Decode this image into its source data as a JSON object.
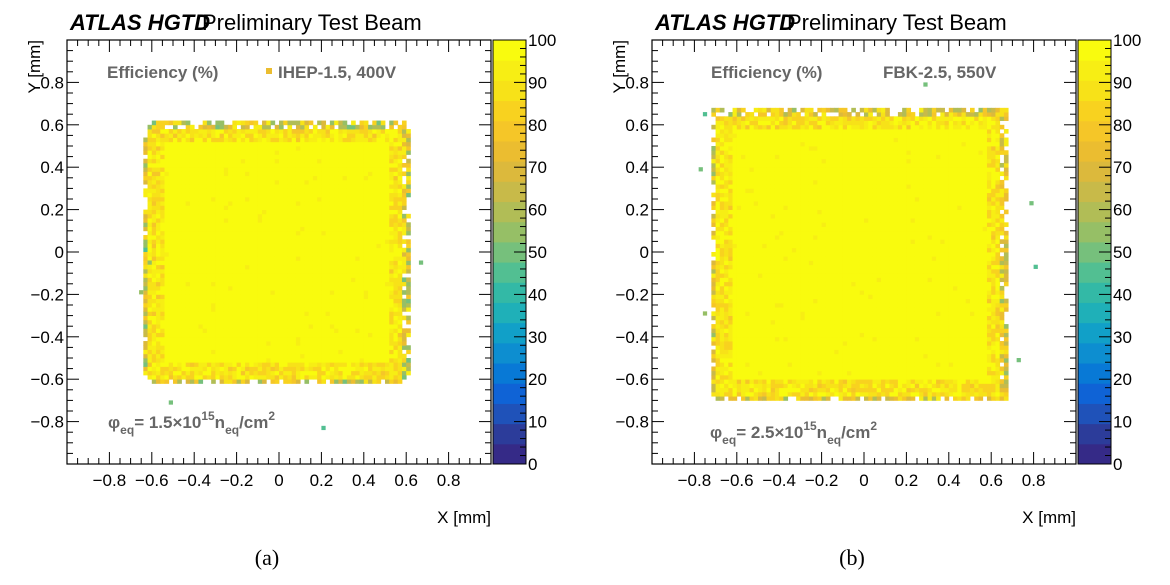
{
  "panels": [
    {
      "id": "a",
      "header_bold": "ATLAS HGTD",
      "header_rest": "Preliminary Test Beam",
      "z_title": "Efficiency (%)",
      "sensor_label": "IHEP-1.5, 400V",
      "fluence": {
        "phi": "φ",
        "phi_sub": "eq",
        "value": "= 1.5×10",
        "exp": "15",
        "n": "n",
        "n_sub": "eq",
        "unit": "/cm",
        "unit_sup": "2"
      },
      "caption": "(a)"
    },
    {
      "id": "b",
      "header_bold": "ATLAS HGTD",
      "header_rest": "Preliminary Test Beam",
      "z_title": "Efficiency (%)",
      "sensor_label": "FBK-2.5, 550V",
      "fluence": {
        "phi": "φ",
        "phi_sub": "eq",
        "value": "= 2.5×10",
        "exp": "15",
        "n": "n",
        "n_sub": "eq",
        "unit": "/cm",
        "unit_sup": "2"
      },
      "caption": "(b)"
    }
  ],
  "chart_data": [
    {
      "type": "heatmap",
      "title": "ATLAS HGTD Preliminary Test Beam",
      "xlabel": "X [mm]",
      "ylabel": "Y [mm]",
      "zlabel": "Efficiency (%)",
      "xlim": [
        -1.0,
        1.0
      ],
      "ylim": [
        -1.0,
        1.0
      ],
      "zlim": [
        0,
        100
      ],
      "x_ticks": [
        -0.8,
        -0.6,
        -0.4,
        -0.2,
        0,
        0.2,
        0.4,
        0.6,
        0.8
      ],
      "x_tick_labels": [
        "−0.8",
        "−0.6",
        "−0.4",
        "−0.2",
        "0",
        "0.2",
        "0.4",
        "0.6",
        "0.8"
      ],
      "y_ticks": [
        -0.8,
        -0.6,
        -0.4,
        -0.2,
        0,
        0.2,
        0.4,
        0.6,
        0.8
      ],
      "y_tick_labels": [
        "−0.8",
        "−0.6",
        "−0.4",
        "−0.2",
        "0",
        "0.2",
        "0.4",
        "0.6",
        "0.8"
      ],
      "z_ticks": [
        0,
        10,
        20,
        30,
        40,
        50,
        60,
        70,
        80,
        90,
        100
      ],
      "z_tick_labels": [
        "0",
        "10",
        "20",
        "30",
        "40",
        "50",
        "60",
        "70",
        "80",
        "90",
        "100"
      ],
      "bin_size": 0.02,
      "region": {
        "xmin": -0.64,
        "xmax": 0.62,
        "ymin": -0.62,
        "ymax": 0.62,
        "corner_radius": 0.1
      },
      "core_efficiency": 99,
      "edge_efficiency": [
        50,
        95
      ],
      "outliers": [
        [
          -0.64,
          0.0
        ],
        [
          -0.66,
          -0.2
        ],
        [
          -0.52,
          -0.72
        ],
        [
          0.2,
          -0.84
        ],
        [
          -0.62,
          -0.06
        ],
        [
          0.66,
          -0.06
        ]
      ],
      "palette": [
        "#352a87",
        "#2c3c9a",
        "#1f52b9",
        "#0f63d6",
        "#0879d6",
        "#0d8ed0",
        "#11a0c8",
        "#1fb0b8",
        "#33b9a6",
        "#52bf92",
        "#76c07c",
        "#96bf66",
        "#b1bd56",
        "#c8ba49",
        "#dcb93c",
        "#ebbd30",
        "#f5c628",
        "#f8d21f",
        "#f7e218",
        "#f7ee14",
        "#f9fb0e"
      ]
    },
    {
      "type": "heatmap",
      "title": "ATLAS HGTD Preliminary Test Beam",
      "xlabel": "X [mm]",
      "ylabel": "Y [mm]",
      "zlabel": "Efficiency (%)",
      "xlim": [
        -1.0,
        1.0
      ],
      "ylim": [
        -1.0,
        1.0
      ],
      "zlim": [
        0,
        100
      ],
      "x_ticks": [
        -0.8,
        -0.6,
        -0.4,
        -0.2,
        0,
        0.2,
        0.4,
        0.6,
        0.8
      ],
      "x_tick_labels": [
        "−0.8",
        "−0.6",
        "−0.4",
        "−0.2",
        "0",
        "0.2",
        "0.4",
        "0.6",
        "0.8"
      ],
      "y_ticks": [
        -0.8,
        -0.6,
        -0.4,
        -0.2,
        0,
        0.2,
        0.4,
        0.6,
        0.8
      ],
      "y_tick_labels": [
        "−0.8",
        "−0.6",
        "−0.4",
        "−0.2",
        "0",
        "0.2",
        "0.4",
        "0.6",
        "0.8"
      ],
      "z_ticks": [
        0,
        10,
        20,
        30,
        40,
        50,
        60,
        70,
        80,
        90,
        100
      ],
      "z_tick_labels": [
        "0",
        "10",
        "20",
        "30",
        "40",
        "50",
        "60",
        "70",
        "80",
        "90",
        "100"
      ],
      "bin_size": 0.02,
      "region": {
        "xmin": -0.72,
        "xmax": 0.68,
        "ymin": -0.7,
        "ymax": 0.68,
        "corner_radius": 0.03
      },
      "core_efficiency": 99,
      "edge_efficiency": [
        55,
        95
      ],
      "outliers": [
        [
          -0.76,
          0.64
        ],
        [
          0.28,
          0.78
        ],
        [
          -0.78,
          0.38
        ],
        [
          0.78,
          0.22
        ],
        [
          0.8,
          -0.08
        ],
        [
          -0.76,
          -0.3
        ],
        [
          0.72,
          -0.52
        ]
      ],
      "palette": [
        "#352a87",
        "#2c3c9a",
        "#1f52b9",
        "#0f63d6",
        "#0879d6",
        "#0d8ed0",
        "#11a0c8",
        "#1fb0b8",
        "#33b9a6",
        "#52bf92",
        "#76c07c",
        "#96bf66",
        "#b1bd56",
        "#c8ba49",
        "#dcb93c",
        "#ebbd30",
        "#f5c628",
        "#f8d21f",
        "#f7e218",
        "#f7ee14",
        "#f9fb0e"
      ]
    }
  ]
}
